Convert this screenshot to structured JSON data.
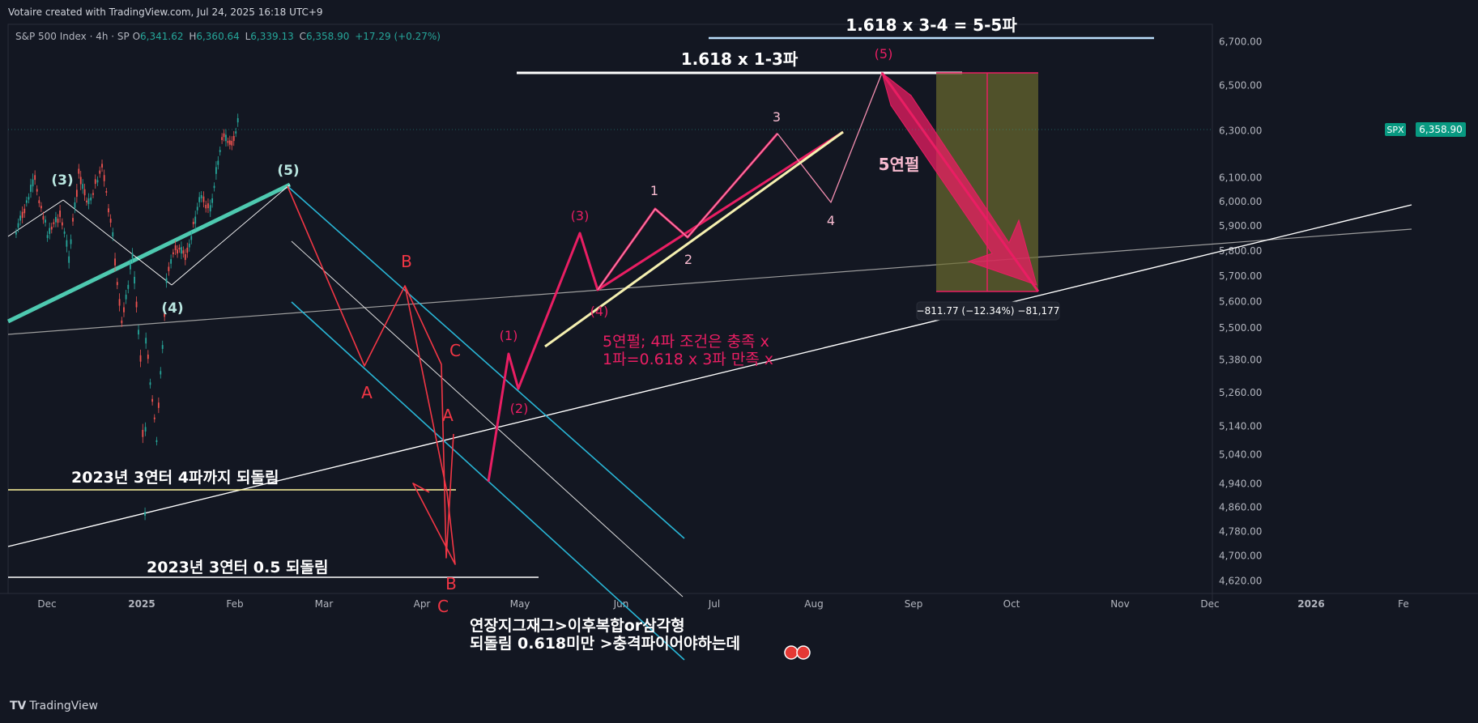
{
  "header": {
    "credit": "Votaire created with TradingView.com, Jul 24, 2025 16:18 UTC+9"
  },
  "legend": {
    "symbol": "S&P 500 Index · 4h · SP",
    "o_label": "O",
    "o": "6,341.62",
    "h_label": "H",
    "h": "6,360.64",
    "l_label": "L",
    "l": "6,339.13",
    "c_label": "C",
    "c": "6,358.90",
    "change": "+17.29 (+0.27%)"
  },
  "footer": {
    "logo": "TV",
    "brand": "TradingView"
  },
  "colors": {
    "background": "#131722",
    "up": "#26a69a",
    "down": "#ef5350",
    "wave_teal": "#4ec9b0",
    "wave_pink": "#e91e63",
    "label_red": "#f23645",
    "channel_cyan": "#29b6d6",
    "band_yellow": "#6b6b2e",
    "cream": "#f5f0b0"
  },
  "chart_data": {
    "type": "line",
    "symbol": "SPX",
    "last_price": "6,358.90",
    "y_scale": "log",
    "ylim": [
      4580,
      6780
    ],
    "yticks": [
      "6,700.00",
      "6,500.00",
      "6,300.00",
      "6,100.00",
      "6,000.00",
      "5,900.00",
      "5,800.00",
      "5,700.00",
      "5,600.00",
      "5,500.00",
      "5,380.00",
      "5,260.00",
      "5,140.00",
      "5,040.00",
      "4,940.00",
      "4,860.00",
      "4,780.00",
      "4,700.00",
      "4,620.00"
    ],
    "xticks": [
      "Dec",
      "2025",
      "Feb",
      "Mar",
      "Apr",
      "May",
      "Jun",
      "Jul",
      "Aug",
      "Sep",
      "Oct",
      "Nov",
      "Dec",
      "2026",
      "Fe"
    ],
    "price_path": [
      {
        "t": "2024-11-15",
        "v": 5870
      },
      {
        "t": "2024-12-06",
        "v": 6090
      },
      {
        "t": "2024-12-20",
        "v": 5870
      },
      {
        "t": "2025-01-03",
        "v": 5950
      },
      {
        "t": "2025-01-13",
        "v": 5780
      },
      {
        "t": "2025-01-24",
        "v": 6110
      },
      {
        "t": "2025-02-04",
        "v": 5990
      },
      {
        "t": "2025-02-19",
        "v": 6150
      },
      {
        "t": "2025-03-03",
        "v": 5850
      },
      {
        "t": "2025-03-13",
        "v": 5510
      },
      {
        "t": "2025-03-25",
        "v": 5780
      },
      {
        "t": "2025-04-03",
        "v": 5400
      },
      {
        "t": "2025-04-08",
        "v": 4840
      },
      {
        "t": "2025-04-09",
        "v": 5450
      },
      {
        "t": "2025-04-21",
        "v": 5100
      },
      {
        "t": "2025-05-02",
        "v": 5680
      },
      {
        "t": "2025-05-12",
        "v": 5820
      },
      {
        "t": "2025-05-23",
        "v": 5770
      },
      {
        "t": "2025-06-10",
        "v": 6030
      },
      {
        "t": "2025-06-20",
        "v": 5960
      },
      {
        "t": "2025-07-03",
        "v": 6280
      },
      {
        "t": "2025-07-14",
        "v": 6240
      },
      {
        "t": "2025-07-23",
        "v": 6358
      }
    ],
    "wave_labels_teal": [
      "(3)",
      "(4)",
      "(5)"
    ],
    "wave_labels_red": [
      "B",
      "A",
      "C",
      "A",
      "B",
      "C"
    ],
    "wave_labels_pink": [
      "(1)",
      "(2)",
      "(3)",
      "(4)",
      "1",
      "2",
      "3",
      "4",
      "(5)"
    ],
    "annotations": {
      "target_main": "1.618 x 1-3파",
      "target_top": "1.618 x 3-4 = 5-5파",
      "bear_note": "5연펄",
      "condition_1": "5연펄; 4파 조건은 충족 x",
      "condition_2": "1파=0.618 x 3파 만족 x",
      "level_1": "2023년 3연터  4파까지 되돌림",
      "level_2": "2023년 3연터 0.5 되돌림",
      "note_1": "연장지그재그>이후복합or삼각형",
      "note_2": "되돌림 0.618미만 >충격파이어야하는데",
      "measure": "−811.77 (−12.34%) −81,177"
    }
  }
}
